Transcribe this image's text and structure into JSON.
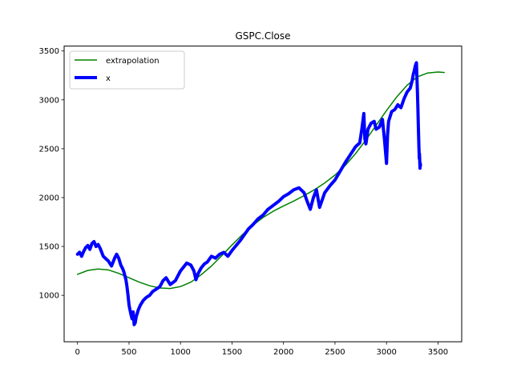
{
  "chart_data": {
    "type": "line",
    "title": "GSPC.Close",
    "xlabel": "",
    "ylabel": "",
    "xlim": [
      -130,
      3730
    ],
    "ylim": [
      525,
      3550
    ],
    "xticks": [
      0,
      500,
      1000,
      1500,
      2000,
      2500,
      3000,
      3500
    ],
    "yticks": [
      1000,
      1500,
      2000,
      2500,
      3000,
      3500
    ],
    "xtick_labels": [
      "0",
      "500",
      "1000",
      "1500",
      "2000",
      "2500",
      "3000",
      "3500"
    ],
    "ytick_labels": [
      "1000",
      "1500",
      "2000",
      "2500",
      "3000",
      "3500"
    ],
    "grid": false,
    "legend_position": "top-left",
    "series": [
      {
        "name": "extrapolation",
        "color": "#008000",
        "style": "thin",
        "x": [
          0,
          100,
          200,
          300,
          400,
          500,
          600,
          700,
          800,
          900,
          1000,
          1100,
          1200,
          1300,
          1400,
          1500,
          1600,
          1700,
          1800,
          1900,
          2000,
          2100,
          2200,
          2300,
          2400,
          2500,
          2600,
          2700,
          2800,
          2900,
          3000,
          3100,
          3200,
          3300,
          3400,
          3500,
          3560
        ],
        "y": [
          1215,
          1255,
          1270,
          1260,
          1225,
          1180,
          1135,
          1098,
          1075,
          1070,
          1090,
          1135,
          1210,
          1300,
          1405,
          1515,
          1620,
          1715,
          1795,
          1860,
          1915,
          1965,
          2020,
          2080,
          2150,
          2230,
          2330,
          2450,
          2590,
          2740,
          2890,
          3030,
          3150,
          3235,
          3275,
          3285,
          3280
        ]
      },
      {
        "name": "x",
        "color": "#0000ff",
        "style": "thick",
        "x": [
          0,
          20,
          40,
          60,
          80,
          100,
          120,
          140,
          160,
          180,
          200,
          220,
          250,
          280,
          300,
          330,
          360,
          380,
          400,
          420,
          440,
          450,
          460,
          470,
          480,
          490,
          500,
          510,
          520,
          530,
          540,
          550,
          560,
          570,
          590,
          610,
          640,
          670,
          700,
          730,
          760,
          800,
          830,
          860,
          900,
          950,
          1000,
          1030,
          1060,
          1100,
          1130,
          1150,
          1170,
          1200,
          1230,
          1260,
          1300,
          1340,
          1380,
          1420,
          1460,
          1500,
          1540,
          1580,
          1620,
          1660,
          1700,
          1750,
          1800,
          1850,
          1900,
          1950,
          2000,
          2050,
          2100,
          2150,
          2200,
          2230,
          2260,
          2290,
          2320,
          2350,
          2400,
          2450,
          2500,
          2550,
          2600,
          2650,
          2700,
          2740,
          2760,
          2780,
          2790,
          2800,
          2820,
          2850,
          2880,
          2900,
          2930,
          2960,
          2980,
          3000,
          3010,
          3020,
          3050,
          3080,
          3110,
          3140,
          3170,
          3200,
          3230,
          3250,
          3260,
          3270,
          3280,
          3290,
          3300,
          3305,
          3310,
          3315,
          3318,
          3320,
          3325,
          3328,
          3330
        ],
        "y": [
          1420,
          1440,
          1400,
          1450,
          1490,
          1510,
          1470,
          1530,
          1550,
          1500,
          1520,
          1480,
          1400,
          1370,
          1350,
          1300,
          1380,
          1420,
          1380,
          1310,
          1270,
          1240,
          1200,
          1160,
          1090,
          1000,
          900,
          850,
          800,
          760,
          830,
          700,
          720,
          780,
          850,
          900,
          950,
          980,
          1000,
          1040,
          1060,
          1090,
          1150,
          1180,
          1110,
          1150,
          1250,
          1290,
          1330,
          1310,
          1250,
          1160,
          1220,
          1280,
          1320,
          1340,
          1400,
          1380,
          1420,
          1440,
          1400,
          1460,
          1510,
          1560,
          1620,
          1680,
          1720,
          1780,
          1820,
          1880,
          1920,
          1960,
          2010,
          2040,
          2080,
          2100,
          2050,
          1960,
          1880,
          2000,
          2080,
          1900,
          2050,
          2120,
          2180,
          2270,
          2360,
          2440,
          2520,
          2560,
          2700,
          2860,
          2600,
          2550,
          2700,
          2760,
          2780,
          2700,
          2720,
          2800,
          2600,
          2350,
          2640,
          2780,
          2880,
          2900,
          2950,
          2920,
          3010,
          3080,
          3120,
          3200,
          3260,
          3300,
          3350,
          3380,
          3100,
          2900,
          2700,
          2500,
          2400,
          2450,
          2300,
          2350,
          2330
        ]
      }
    ]
  }
}
